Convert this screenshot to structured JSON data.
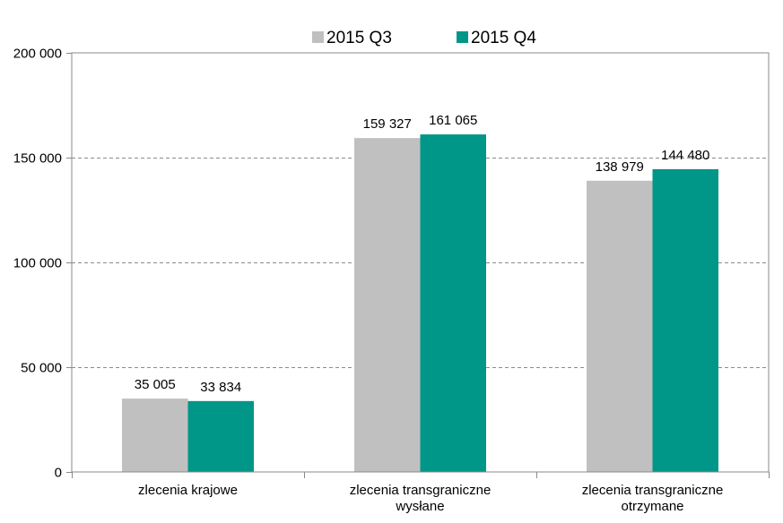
{
  "chart_data": {
    "type": "bar",
    "categories": [
      [
        "zlecenia krajowe"
      ],
      [
        "zlecenia transgraniczne",
        "wysłane"
      ],
      [
        "zlecenia transgraniczne",
        "otrzymane"
      ]
    ],
    "series": [
      {
        "name": "2015 Q3",
        "color": "#c0c0c0",
        "values": [
          35005,
          159327,
          138979
        ],
        "labels": [
          "35 005",
          "159 327",
          "138 979"
        ]
      },
      {
        "name": "2015 Q4",
        "color": "#009688",
        "values": [
          33834,
          161065,
          144480
        ],
        "labels": [
          "33 834",
          "161 065",
          "144 480"
        ]
      }
    ],
    "yticks": [
      0,
      50000,
      100000,
      150000,
      200000
    ],
    "ytick_labels": [
      "0",
      "50 000",
      "100 000",
      "150 000",
      "200 000"
    ],
    "ylim": [
      0,
      200000
    ],
    "grid": true,
    "legend_position": "top-center"
  }
}
